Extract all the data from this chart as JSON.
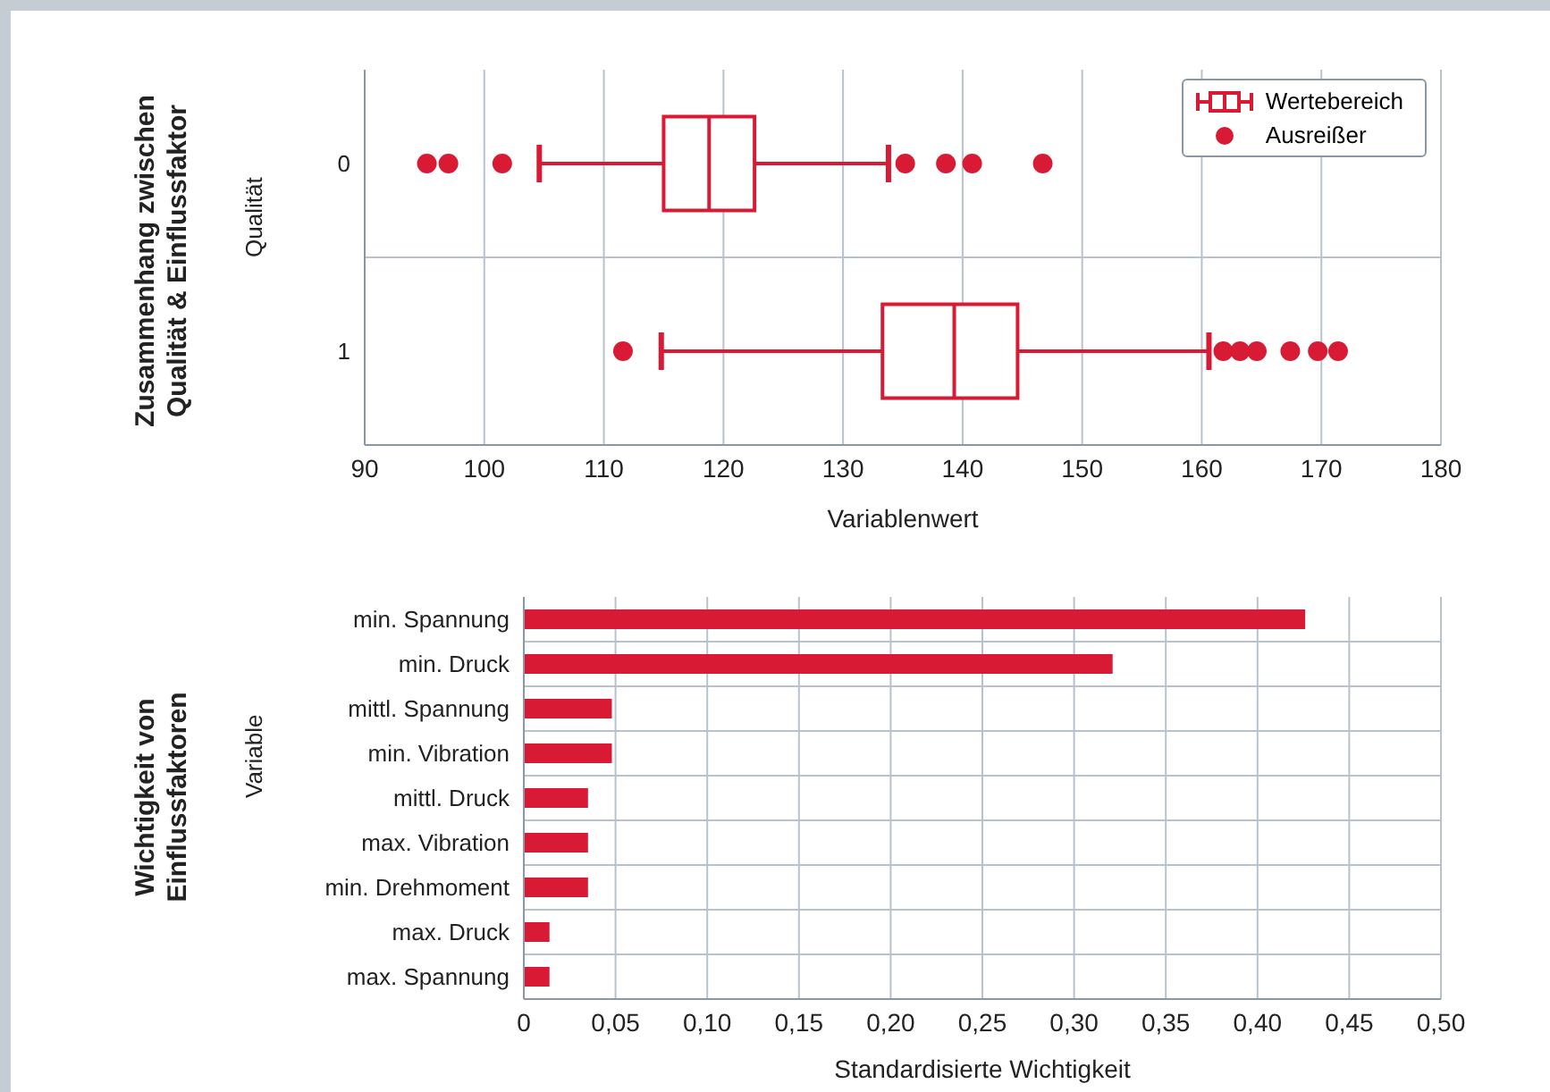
{
  "chart_data": [
    {
      "type": "box",
      "orientation": "horizontal",
      "title": "Zusammenhang zwischen\nQualität & Einflussfaktor",
      "ylabel": "Qualität",
      "xlabel": "Variablenwert",
      "categories": [
        "0",
        "1"
      ],
      "xlim": [
        90,
        180
      ],
      "xticks": [
        90,
        100,
        110,
        120,
        130,
        140,
        150,
        160,
        170,
        180
      ],
      "grid": true,
      "legend": "top right",
      "series": [
        {
          "name": "Wertebereich",
          "color": "#d91a35",
          "boxes": [
            {
              "low": 104.6,
              "q1": 115,
              "median": 118.8,
              "q3": 122.6,
              "high": 133.8
            },
            {
              "low": 114.8,
              "q1": 133.3,
              "median": 139.3,
              "q3": 144.6,
              "high": 160.6
            }
          ]
        },
        {
          "name": "Ausreißer",
          "type": "scatter",
          "color": "#d91a35",
          "marker": "circle",
          "x": [
            "0",
            "0",
            "0",
            "0",
            "0",
            "0",
            "0",
            "1",
            "1",
            "1",
            "1",
            "1",
            "1",
            "1"
          ],
          "values": [
            95.2,
            97,
            101.5,
            135.2,
            138.6,
            140.8,
            146.7,
            111.6,
            161.8,
            163.2,
            164.6,
            167.4,
            169.7,
            171.4
          ]
        }
      ]
    },
    {
      "type": "bar",
      "orientation": "horizontal",
      "title": "Wichtigkeit von\nEinflussfaktoren",
      "ylabel": "Variable",
      "xlabel": "Standardisierte Wichtigkeit",
      "categories": [
        "min. Spannung",
        "min. Druck",
        "mittl. Spannung",
        "min. Vibration",
        "mittl. Druck",
        "max. Vibration",
        "min. Drehmoment",
        "max. Druck",
        "max. Spannung"
      ],
      "values": [
        0.426,
        0.321,
        0.048,
        0.048,
        0.035,
        0.035,
        0.035,
        0.014,
        0.014
      ],
      "color": "#d91a35",
      "xlim": [
        0,
        0.5
      ],
      "xticks": [
        0,
        {
          "value": 0.05,
          "label": "0,05"
        },
        {
          "value": 0.1,
          "label": "0,10"
        },
        {
          "value": 0.15,
          "label": "0,15"
        },
        {
          "value": 0.2,
          "label": "0,20"
        },
        {
          "value": 0.25,
          "label": "0,25"
        },
        {
          "value": 0.3,
          "label": "0,30"
        },
        {
          "value": 0.35,
          "label": "0,35"
        },
        {
          "value": 0.4,
          "label": "0,40"
        },
        {
          "value": 0.45,
          "label": "0,45"
        },
        {
          "value": 0.5,
          "label": "0,50"
        }
      ],
      "grid": true
    }
  ]
}
